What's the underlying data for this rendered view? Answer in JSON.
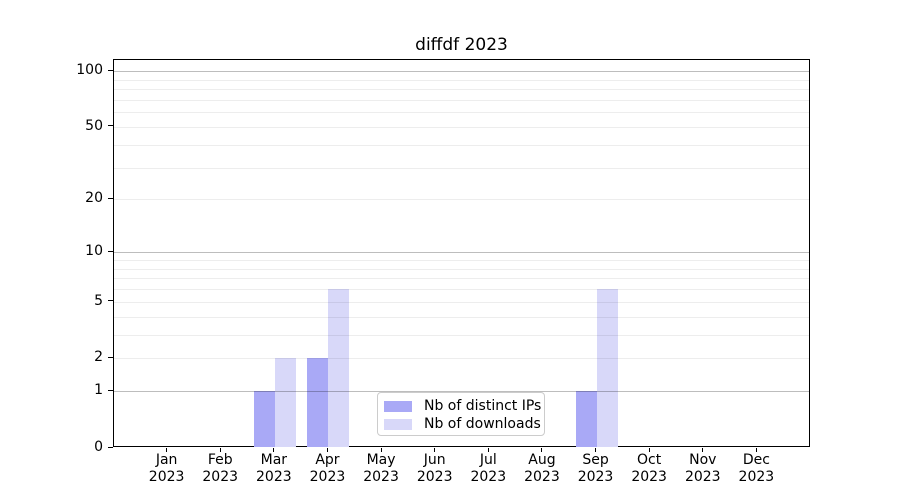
{
  "chart_data": {
    "type": "bar",
    "title": "diffdf 2023",
    "categories": [
      "Jan",
      "Feb",
      "Mar",
      "Apr",
      "May",
      "Jun",
      "Jul",
      "Aug",
      "Sep",
      "Oct",
      "Nov",
      "Dec"
    ],
    "year_label": "2023",
    "series": [
      {
        "name": "Nb of distinct IPs",
        "color": "#a9a9f6",
        "values": [
          0,
          0,
          1,
          2,
          0,
          0,
          0,
          0,
          1,
          0,
          0,
          0
        ]
      },
      {
        "name": "Nb of downloads",
        "color": "#d8d8f9",
        "values": [
          0,
          0,
          2,
          6,
          0,
          0,
          0,
          0,
          6,
          0,
          0,
          0
        ]
      }
    ],
    "y_axis": {
      "scale": "log1p",
      "tick_labels": [
        0,
        1,
        2,
        5,
        10,
        20,
        50,
        100
      ],
      "major_gridlines": [
        1,
        10,
        100
      ],
      "minor_gridlines": [
        2,
        3,
        4,
        5,
        6,
        7,
        8,
        9,
        20,
        30,
        40,
        50,
        60,
        70,
        80,
        90
      ],
      "ylim": [
        0,
        115
      ]
    },
    "x_axis": {
      "tick_label_lines": 2
    },
    "legend": {
      "position": "lower center",
      "entries": [
        "Nb of distinct IPs",
        "Nb of downloads"
      ]
    },
    "grid": "horizontal",
    "colors": {
      "major_grid": "rgba(0,0,0,0.26)",
      "minor_grid": "rgba(0,0,0,0.07)",
      "spine": "#000000",
      "text": "#000000",
      "background": "#ffffff"
    }
  }
}
